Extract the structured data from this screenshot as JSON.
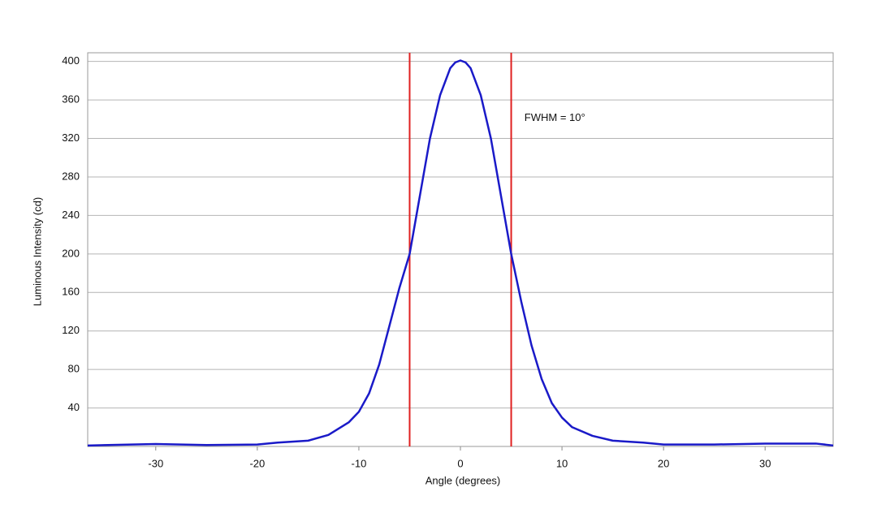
{
  "chart_data": {
    "type": "line",
    "x_label": "Angle (degrees)",
    "y_label": "Luminous Intensity (cd)",
    "annotation": "FWHM = 10°",
    "annotation_x": 6.3,
    "annotation_y": 341,
    "x": [
      -36.7,
      -30,
      -25,
      -20,
      -18,
      -15,
      -13,
      -11,
      -10,
      -9,
      -8,
      -7,
      -6,
      -5,
      -4,
      -3,
      -2,
      -1,
      -0.5,
      0,
      0.5,
      1,
      2,
      3,
      4,
      5,
      6,
      7,
      8,
      9,
      10,
      11,
      13,
      15,
      18,
      20,
      25,
      30,
      35,
      36.7
    ],
    "series": [
      {
        "color": "#1a1ac8",
        "values": [
          1,
          2.5,
          1.5,
          2,
          4,
          6,
          12,
          25,
          36,
          55,
          85,
          125,
          165,
          200,
          260,
          320,
          365,
          393,
          399,
          401,
          399,
          393,
          365,
          320,
          260,
          200,
          150,
          105,
          70,
          45,
          30,
          20,
          11,
          6,
          4,
          2,
          2,
          3,
          3,
          1
        ]
      }
    ],
    "reference_lines": {
      "x": [
        -5,
        5
      ],
      "color": "#e02020"
    },
    "xlim": [
      -36.7,
      36.7
    ],
    "xticks": [
      -30,
      -20,
      -10,
      0,
      10,
      20,
      30
    ],
    "ylim": [
      0,
      409
    ],
    "yticks": [
      40,
      80,
      120,
      160,
      200,
      240,
      280,
      320,
      360,
      400
    ],
    "grid": true
  }
}
